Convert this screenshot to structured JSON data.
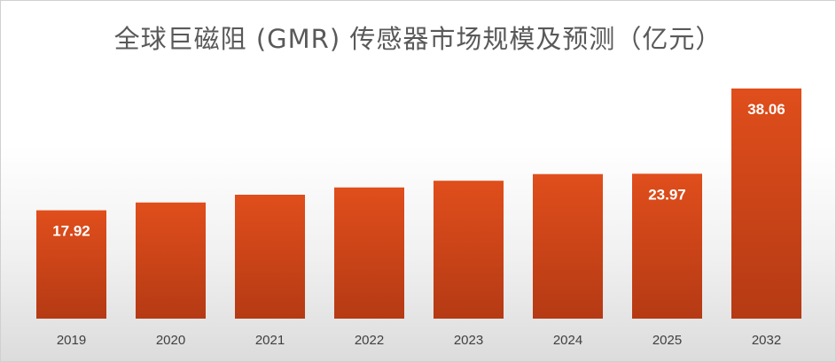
{
  "chart_data": {
    "type": "bar",
    "title": "全球巨磁阻 (GMR) 传感器市场规模及预测（亿元）",
    "xlabel": "",
    "ylabel": "",
    "categories": [
      "2019",
      "2020",
      "2021",
      "2022",
      "2023",
      "2024",
      "2025",
      "2032"
    ],
    "values": [
      17.92,
      19.2,
      20.5,
      21.7,
      22.8,
      23.9,
      23.97,
      38.06
    ],
    "data_labels": [
      "17.92",
      "",
      "",
      "",
      "",
      "",
      "23.97",
      "38.06"
    ],
    "ylim": [
      0,
      40
    ],
    "grid": false,
    "legend": "none",
    "bar_color_top": "#e04e1c",
    "bar_color_bottom": "#b53a14"
  }
}
